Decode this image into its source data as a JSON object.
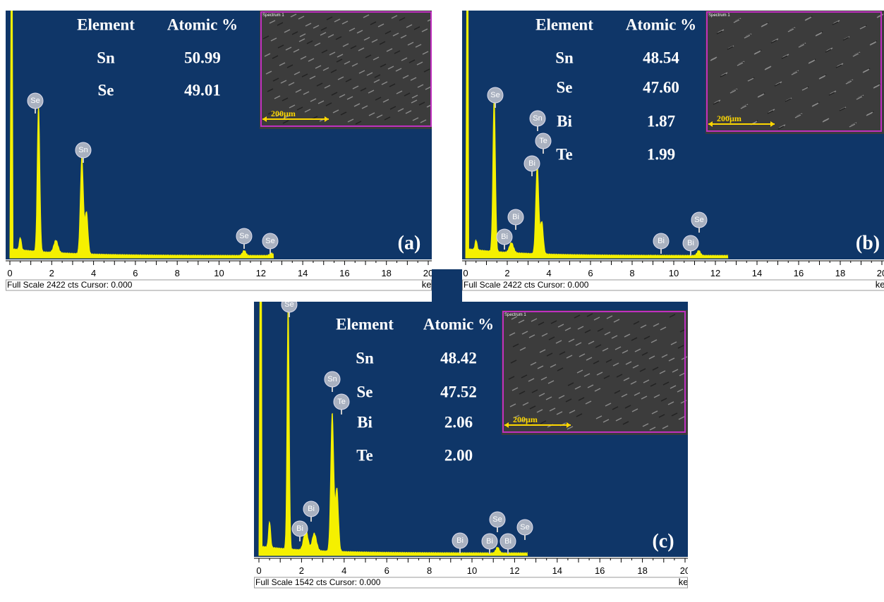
{
  "panels": [
    {
      "label": "(a)",
      "table": {
        "header": [
          "Element",
          "Atomic %"
        ],
        "rows": [
          [
            "Sn",
            "50.99"
          ],
          [
            "Se",
            "49.01"
          ]
        ]
      },
      "inset": {
        "tag": "Spectrum 1",
        "scale": "200µm"
      },
      "peak_labels": [
        "Se",
        "Sn",
        "Se",
        "Se"
      ],
      "axis": {
        "ticks": [
          "0",
          "2",
          "4",
          "6",
          "8",
          "10",
          "12",
          "14",
          "16",
          "18",
          "20"
        ],
        "unit": "keV"
      },
      "footer": "Full Scale 2422 cts Cursor: 0.000"
    },
    {
      "label": "(b)",
      "table": {
        "header": [
          "Element",
          "Atomic %"
        ],
        "rows": [
          [
            "Sn",
            "48.54"
          ],
          [
            "Se",
            "47.60"
          ],
          [
            "Bi",
            "1.87"
          ],
          [
            "Te",
            "1.99"
          ]
        ]
      },
      "inset": {
        "tag": "Spectrum 1",
        "scale": "200µm"
      },
      "peak_labels": [
        "Se",
        "Sn",
        "Te",
        "Bi",
        "Bi",
        "Bi",
        "Bi",
        "Bi",
        "Se"
      ],
      "axis": {
        "ticks": [
          "0",
          "2",
          "4",
          "6",
          "8",
          "10",
          "12",
          "14",
          "16",
          "18",
          "20"
        ],
        "unit": "keV"
      },
      "footer": "Full Scale 2422 cts Cursor: 0.000"
    },
    {
      "label": "(c)",
      "table": {
        "header": [
          "Element",
          "Atomic %"
        ],
        "rows": [
          [
            "Sn",
            "48.42"
          ],
          [
            "Se",
            "47.52"
          ],
          [
            "Bi",
            "2.06"
          ],
          [
            "Te",
            "2.00"
          ]
        ]
      },
      "inset": {
        "tag": "Spectrum 1",
        "scale": "200µm"
      },
      "peak_labels": [
        "Se",
        "Sn",
        "Te",
        "Bi",
        "Bi",
        "Bi",
        "Bi",
        "Bi",
        "Se",
        "Se"
      ],
      "axis": {
        "ticks": [
          "0",
          "2",
          "4",
          "6",
          "8",
          "10",
          "12",
          "14",
          "16",
          "18",
          "20"
        ],
        "unit": "keV"
      },
      "footer": "Full Scale 1542 cts Cursor: 0.000"
    }
  ]
}
